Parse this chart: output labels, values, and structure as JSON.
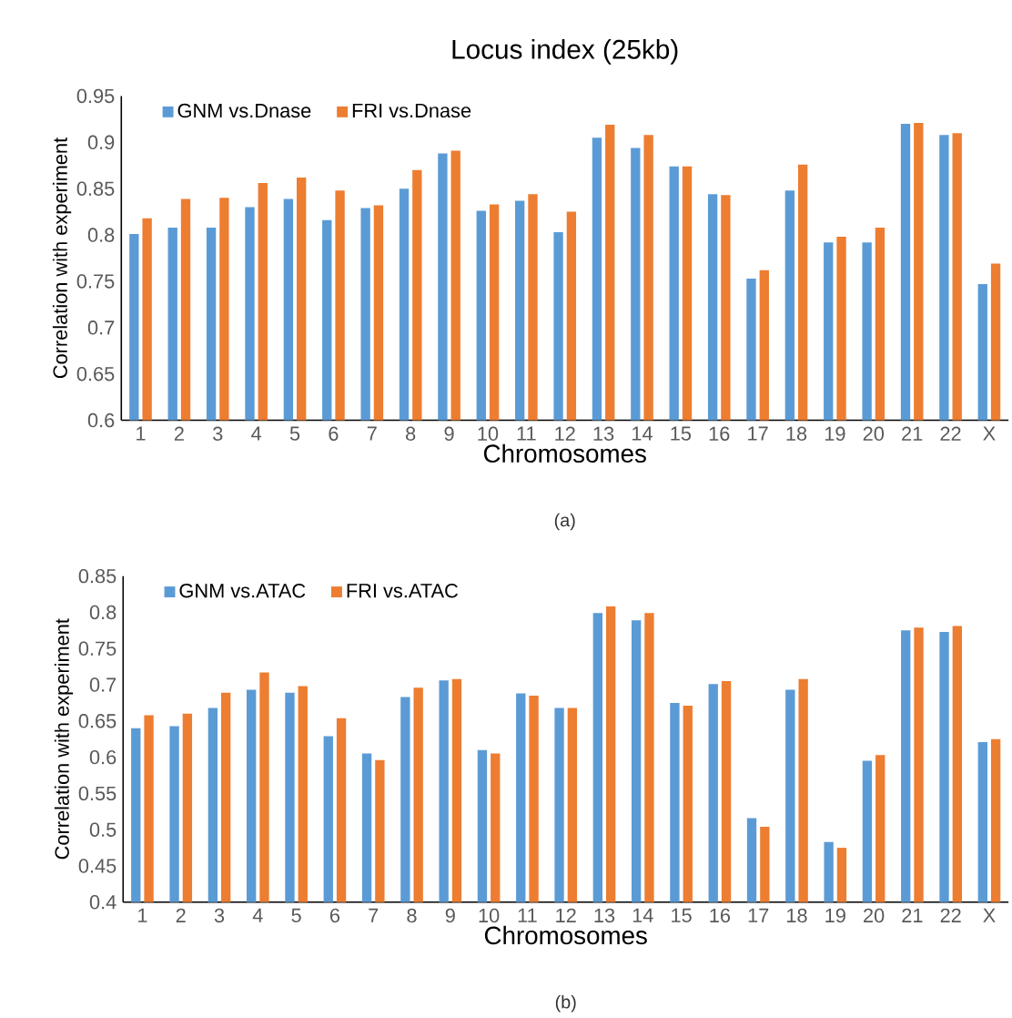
{
  "chart_data": [
    {
      "type": "bar",
      "title": "Locus index (25kb)",
      "xlabel": "Chromosomes",
      "ylabel": "Correlation with experiment",
      "annotations": [
        "(a)"
      ],
      "categories": [
        "1",
        "2",
        "3",
        "4",
        "5",
        "6",
        "7",
        "8",
        "9",
        "10",
        "11",
        "12",
        "13",
        "14",
        "15",
        "16",
        "17",
        "18",
        "19",
        "20",
        "21",
        "22",
        "X"
      ],
      "series": [
        {
          "name": "GNM vs.Dnase",
          "color": "#5b9bd5",
          "values": [
            0.801,
            0.808,
            0.808,
            0.83,
            0.839,
            0.816,
            0.829,
            0.85,
            0.888,
            0.826,
            0.837,
            0.803,
            0.905,
            0.894,
            0.874,
            0.844,
            0.753,
            0.848,
            0.792,
            0.792,
            0.92,
            0.908,
            0.747
          ]
        },
        {
          "name": "FRI vs.Dnase",
          "color": "#ed7d31",
          "values": [
            0.818,
            0.839,
            0.84,
            0.856,
            0.862,
            0.848,
            0.832,
            0.87,
            0.891,
            0.833,
            0.844,
            0.825,
            0.919,
            0.908,
            0.874,
            0.843,
            0.762,
            0.876,
            0.798,
            0.808,
            0.921,
            0.91,
            0.769
          ]
        }
      ],
      "ylim": [
        0.6,
        0.95
      ],
      "yticks": [
        0.6,
        0.65,
        0.7,
        0.75,
        0.8,
        0.85,
        0.9,
        0.95
      ],
      "legend": "top left",
      "grid": false
    },
    {
      "type": "bar",
      "xlabel": "Chromosomes",
      "ylabel": "Correlation with experiment",
      "annotations": [
        "(b)"
      ],
      "categories": [
        "1",
        "2",
        "3",
        "4",
        "5",
        "6",
        "7",
        "8",
        "9",
        "10",
        "11",
        "12",
        "13",
        "14",
        "15",
        "16",
        "17",
        "18",
        "19",
        "20",
        "21",
        "22",
        "X"
      ],
      "series": [
        {
          "name": "GNM vs.ATAC",
          "color": "#5b9bd5",
          "values": [
            0.64,
            0.643,
            0.668,
            0.693,
            0.689,
            0.629,
            0.605,
            0.683,
            0.706,
            0.61,
            0.688,
            0.668,
            0.799,
            0.789,
            0.675,
            0.701,
            0.516,
            0.693,
            0.483,
            0.595,
            0.775,
            0.773,
            0.621
          ]
        },
        {
          "name": "FRI vs.ATAC",
          "color": "#ed7d31",
          "values": [
            0.658,
            0.66,
            0.689,
            0.717,
            0.698,
            0.654,
            0.596,
            0.696,
            0.708,
            0.605,
            0.685,
            0.668,
            0.808,
            0.799,
            0.671,
            0.705,
            0.504,
            0.708,
            0.475,
            0.603,
            0.779,
            0.781,
            0.625
          ]
        }
      ],
      "ylim": [
        0.4,
        0.85
      ],
      "yticks": [
        0.4,
        0.45,
        0.5,
        0.55,
        0.6,
        0.65,
        0.7,
        0.75,
        0.8,
        0.85
      ],
      "legend": "top left",
      "grid": false
    }
  ]
}
